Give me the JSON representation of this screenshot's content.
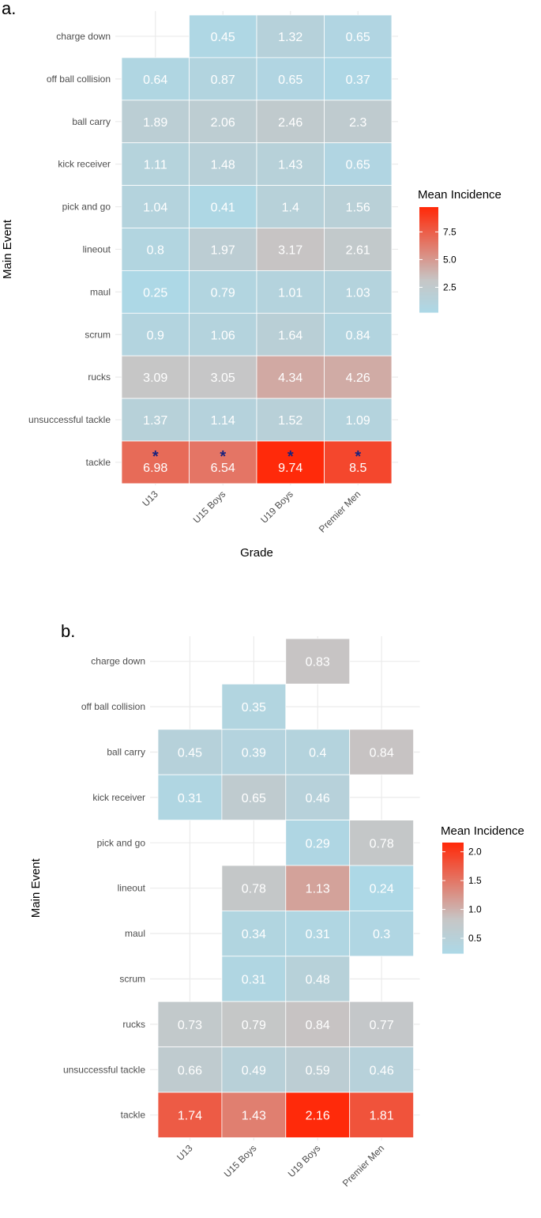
{
  "chart_data": [
    {
      "type": "heatmap",
      "panel_label": "a.",
      "xlabel": "Grade",
      "ylabel": "Main Event",
      "x_categories": [
        "U13",
        "U15 Boys",
        "U19 Boys",
        "Premier Men"
      ],
      "y_categories": [
        "charge down",
        "off ball collision",
        "ball carry",
        "kick receiver",
        "pick and go",
        "lineout",
        "maul",
        "scrum",
        "rucks",
        "unsuccessful tackle",
        "tackle"
      ],
      "values": [
        [
          null,
          0.45,
          1.32,
          0.65
        ],
        [
          0.64,
          0.87,
          0.65,
          0.37
        ],
        [
          1.89,
          2.06,
          2.46,
          2.3
        ],
        [
          1.11,
          1.48,
          1.43,
          0.65
        ],
        [
          1.04,
          0.41,
          1.4,
          1.56
        ],
        [
          0.8,
          1.97,
          3.17,
          2.61
        ],
        [
          0.25,
          0.79,
          1.01,
          1.03
        ],
        [
          0.9,
          1.06,
          1.64,
          0.84
        ],
        [
          3.09,
          3.05,
          4.34,
          4.26
        ],
        [
          1.37,
          1.14,
          1.52,
          1.09
        ],
        [
          6.98,
          6.54,
          9.74,
          8.5
        ]
      ],
      "labels": [
        [
          null,
          "0.45",
          "1.32",
          "0.65"
        ],
        [
          "0.64",
          "0.87",
          "0.65",
          "0.37"
        ],
        [
          "1.89",
          "2.06",
          "2.46",
          "2.3"
        ],
        [
          "1.11",
          "1.48",
          "1.43",
          "0.65"
        ],
        [
          "1.04",
          "0.41",
          "1.4",
          "1.56"
        ],
        [
          "0.8",
          "1.97",
          "3.17",
          "2.61"
        ],
        [
          "0.25",
          "0.79",
          "1.01",
          "1.03"
        ],
        [
          "0.9",
          "1.06",
          "1.64",
          "0.84"
        ],
        [
          "3.09",
          "3.05",
          "4.34",
          "4.26"
        ],
        [
          "1.37",
          "1.14",
          "1.52",
          "1.09"
        ],
        [
          "6.98",
          "6.54",
          "9.74",
          "8.5"
        ]
      ],
      "significance_marker": "*",
      "significant_row": "tackle",
      "legend": {
        "title": "Mean Incidence",
        "min": 0.25,
        "max": 9.74,
        "ticks": [
          2.5,
          5.0,
          7.5
        ],
        "tick_labels": [
          "2.5",
          "5.0",
          "7.5"
        ],
        "low_color": "#add8e6",
        "mid_color": "#c6c6c6",
        "high_color": "#ff2a0a"
      }
    },
    {
      "type": "heatmap",
      "panel_label": "b.",
      "xlabel": "Grade",
      "ylabel": "Main Event",
      "x_categories": [
        "U13",
        "U15 Boys",
        "U19 Boys",
        "Premier Men"
      ],
      "y_categories": [
        "charge down",
        "off ball collision",
        "ball carry",
        "kick receiver",
        "pick and go",
        "lineout",
        "maul",
        "scrum",
        "rucks",
        "unsuccessful tackle",
        "tackle"
      ],
      "values": [
        [
          null,
          null,
          0.83,
          null
        ],
        [
          null,
          0.35,
          null,
          null
        ],
        [
          0.45,
          0.39,
          0.4,
          0.84
        ],
        [
          0.31,
          0.65,
          0.46,
          null
        ],
        [
          null,
          null,
          0.29,
          0.78
        ],
        [
          null,
          0.78,
          1.13,
          0.24
        ],
        [
          null,
          0.34,
          0.31,
          0.3
        ],
        [
          null,
          0.31,
          0.48,
          null
        ],
        [
          0.73,
          0.79,
          0.84,
          0.77
        ],
        [
          0.66,
          0.49,
          0.59,
          0.46
        ],
        [
          1.74,
          1.43,
          2.16,
          1.81
        ]
      ],
      "labels": [
        [
          null,
          null,
          "0.83",
          null
        ],
        [
          null,
          "0.35",
          null,
          null
        ],
        [
          "0.45",
          "0.39",
          "0.4",
          "0.84"
        ],
        [
          "0.31",
          "0.65",
          "0.46",
          null
        ],
        [
          null,
          null,
          "0.29",
          "0.78"
        ],
        [
          null,
          "0.78",
          "1.13",
          "0.24"
        ],
        [
          null,
          "0.34",
          "0.31",
          "0.3"
        ],
        [
          null,
          "0.31",
          "0.48",
          null
        ],
        [
          "0.73",
          "0.79",
          "0.84",
          "0.77"
        ],
        [
          "0.66",
          "0.49",
          "0.59",
          "0.46"
        ],
        [
          "1.74",
          "1.43",
          "2.16",
          "1.81"
        ]
      ],
      "legend": {
        "title": "Mean Incidence",
        "min": 0.24,
        "max": 2.16,
        "ticks": [
          0.5,
          1.0,
          1.5,
          2.0
        ],
        "tick_labels": [
          "0.5",
          "1.0",
          "1.5",
          "2.0"
        ],
        "low_color": "#add8e6",
        "mid_color": "#c6c6c6",
        "high_color": "#ff2a0a"
      }
    }
  ]
}
